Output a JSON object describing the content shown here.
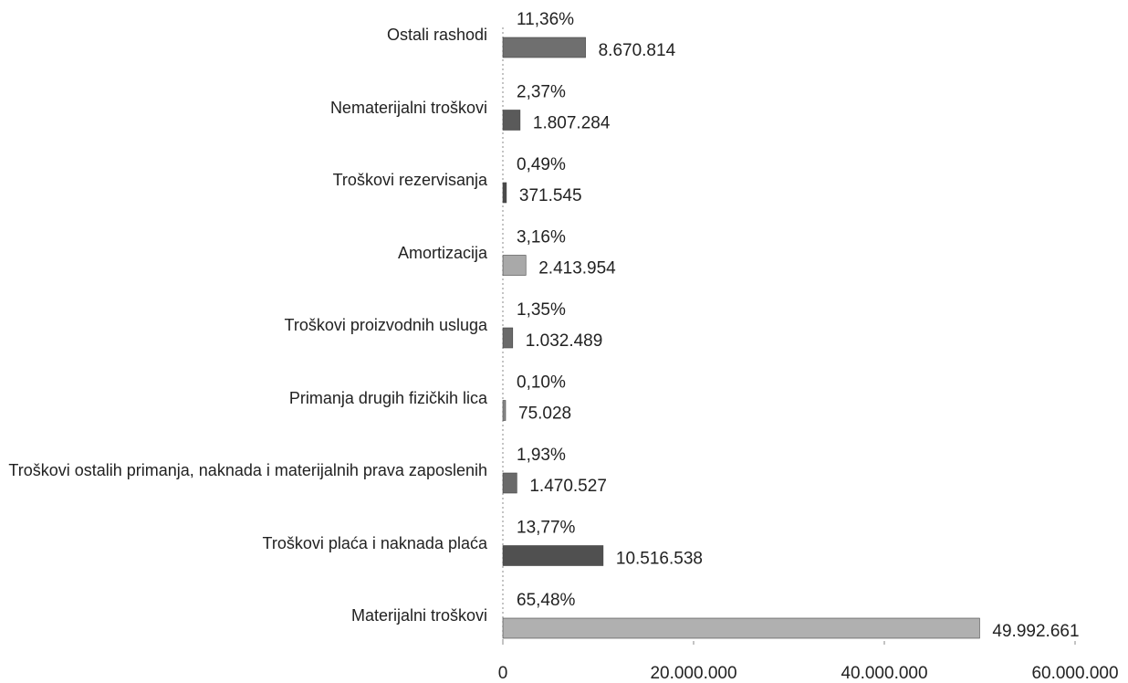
{
  "chart_data": {
    "type": "barh",
    "categories": [
      "Ostali rashodi",
      "Nematerijalni troškovi",
      "Troškovi rezervisanja",
      "Amortizacija",
      "Troškovi proizvodnih usluga",
      "Primanja drugih fizičkih lica",
      "Troškovi ostalih primanja, naknada i materijalnih prava zaposlenih",
      "Troškovi plaća i naknada plaća",
      "Materijalni troškovi"
    ],
    "values": [
      8670814,
      1807284,
      371545,
      2413954,
      1032489,
      75028,
      1470527,
      10516538,
      49992661
    ],
    "value_labels": [
      "8.670.814",
      "1.807.284",
      "371.545",
      "2.413.954",
      "1.032.489",
      "75.028",
      "1.470.527",
      "10.516.538",
      "49.992.661"
    ],
    "share_labels": [
      "11,36%",
      "2,37%",
      "0,49%",
      "3,16%",
      "1,35%",
      "0,10%",
      "1,93%",
      "13,77%",
      "65,48%"
    ],
    "colors": [
      "#6f6f6f",
      "#5a5a5a",
      "#4a4a4a",
      "#a9a9a9",
      "#6a6a6a",
      "#8a8a8a",
      "#6a6a6a",
      "#505050",
      "#b0b0b0"
    ],
    "xlim": [
      0,
      60000000
    ],
    "xticks": [
      0,
      {
        "value": 20000000,
        "label": "20.000.000"
      },
      {
        "value": 40000000,
        "label": "40.000.000"
      },
      {
        "value": 60000000,
        "label": "60.000.000"
      }
    ]
  }
}
